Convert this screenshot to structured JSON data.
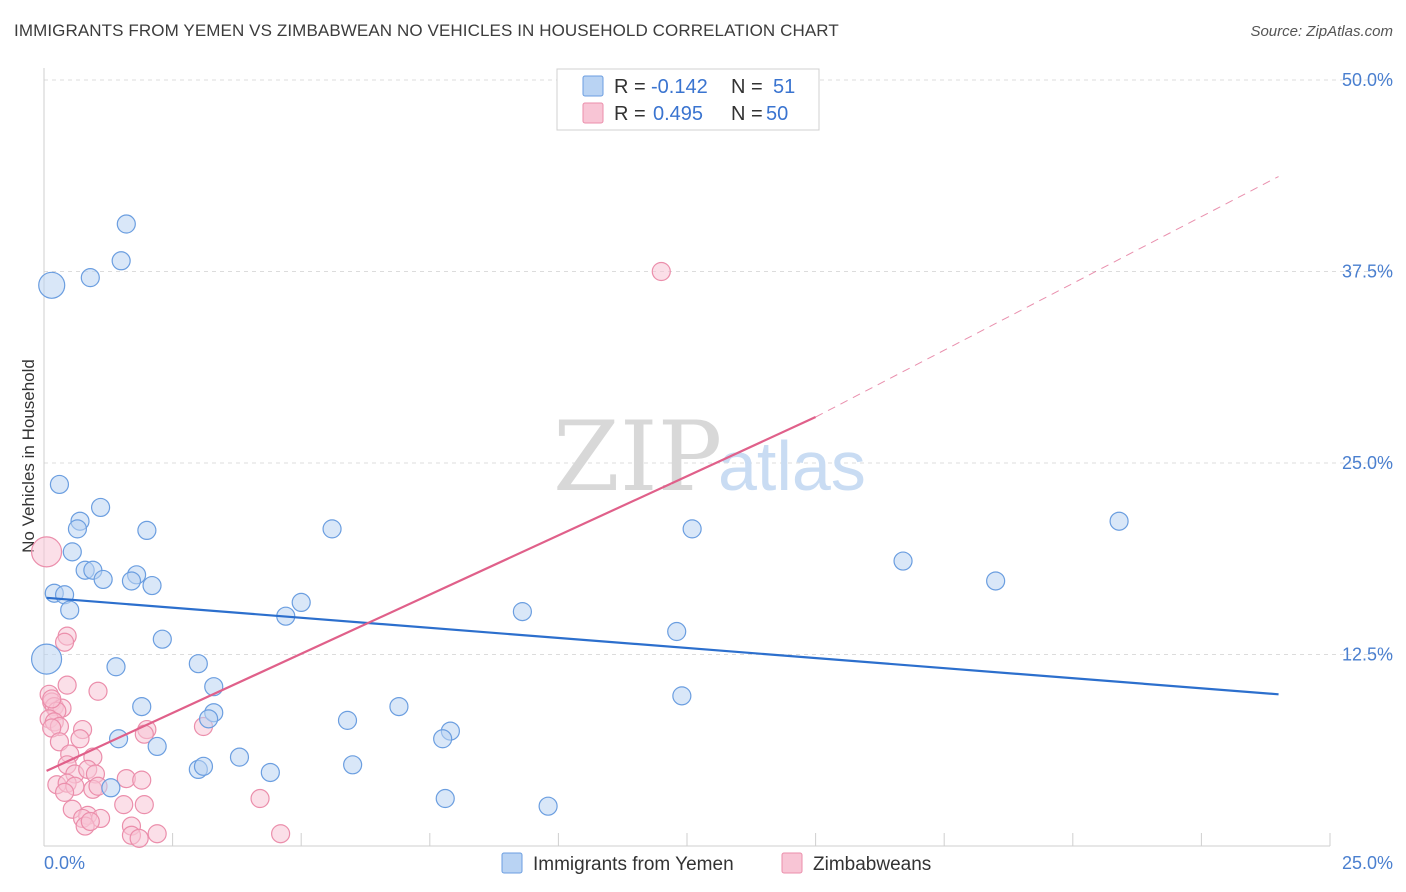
{
  "header": {
    "title": "IMMIGRANTS FROM YEMEN VS ZIMBABWEAN NO VEHICLES IN HOUSEHOLD CORRELATION CHART",
    "source": "Source: ZipAtlas.com"
  },
  "watermark": {
    "zip": "ZIP",
    "atlas": "atlas"
  },
  "legend": {
    "rows": [
      {
        "r_label": "R =",
        "r_value": "-0.142",
        "n_label": "N =",
        "n_value": "51"
      },
      {
        "r_label": "R =",
        "r_value": "0.495",
        "n_label": "N =",
        "n_value": "50"
      }
    ]
  },
  "bottom_legend": [
    "Immigrants from Yemen",
    "Zimbabweans"
  ],
  "colors": {
    "blue_fill": "#b9d3f3",
    "blue_stroke": "#6b9ee0",
    "blue_line": "#2c6fcd",
    "pink_fill": "#f8c5d5",
    "pink_stroke": "#eb8eab",
    "pink_line": "#e0608a",
    "grid": "#dcdcdc",
    "tick_text": "#4a7fcf"
  },
  "chart_data": {
    "type": "scatter",
    "title": "IMMIGRANTS FROM YEMEN VS ZIMBABWEAN NO VEHICLES IN HOUSEHOLD CORRELATION CHART",
    "xlabel": "",
    "ylabel": "No Vehicles in Household",
    "xlim": [
      0,
      25
    ],
    "ylim": [
      0,
      50
    ],
    "x_tick_labels": [
      "0.0%",
      "25.0%"
    ],
    "y_ticks": [
      12.5,
      25.0,
      37.5,
      50.0
    ],
    "y_tick_labels": [
      "12.5%",
      "25.0%",
      "37.5%",
      "50.0%"
    ],
    "grid": true,
    "legend_position": "top-center",
    "series": [
      {
        "name": "Immigrants from Yemen",
        "r": -0.142,
        "n": 51,
        "trend": {
          "x0": 0.05,
          "y0": 16.2,
          "x1": 24.0,
          "y1": 9.9
        },
        "points": [
          {
            "x": 0.15,
            "y": 36.6,
            "s": 13
          },
          {
            "x": 0.9,
            "y": 37.1,
            "s": 9
          },
          {
            "x": 1.5,
            "y": 38.2,
            "s": 9
          },
          {
            "x": 1.6,
            "y": 40.6,
            "s": 9
          },
          {
            "x": 0.3,
            "y": 23.6,
            "s": 9
          },
          {
            "x": 1.1,
            "y": 22.1,
            "s": 9
          },
          {
            "x": 0.7,
            "y": 21.2,
            "s": 9
          },
          {
            "x": 0.65,
            "y": 20.7,
            "s": 9
          },
          {
            "x": 2.0,
            "y": 20.6,
            "s": 9
          },
          {
            "x": 5.6,
            "y": 20.7,
            "s": 9
          },
          {
            "x": 12.6,
            "y": 20.7,
            "s": 9
          },
          {
            "x": 20.9,
            "y": 21.2,
            "s": 9
          },
          {
            "x": 0.55,
            "y": 19.2,
            "s": 9
          },
          {
            "x": 16.7,
            "y": 18.6,
            "s": 9
          },
          {
            "x": 0.8,
            "y": 18.0,
            "s": 9
          },
          {
            "x": 0.95,
            "y": 18.0,
            "s": 9
          },
          {
            "x": 1.15,
            "y": 17.4,
            "s": 9
          },
          {
            "x": 1.8,
            "y": 17.7,
            "s": 9
          },
          {
            "x": 1.7,
            "y": 17.3,
            "s": 9
          },
          {
            "x": 2.1,
            "y": 17.0,
            "s": 9
          },
          {
            "x": 18.5,
            "y": 17.3,
            "s": 9
          },
          {
            "x": 0.2,
            "y": 16.5,
            "s": 9
          },
          {
            "x": 0.4,
            "y": 16.4,
            "s": 9
          },
          {
            "x": 0.5,
            "y": 15.4,
            "s": 9
          },
          {
            "x": 5.0,
            "y": 15.9,
            "s": 9
          },
          {
            "x": 4.7,
            "y": 15.0,
            "s": 9
          },
          {
            "x": 9.3,
            "y": 15.3,
            "s": 9
          },
          {
            "x": 12.3,
            "y": 14.0,
            "s": 9
          },
          {
            "x": 2.3,
            "y": 13.5,
            "s": 9
          },
          {
            "x": 0.05,
            "y": 12.2,
            "s": 15
          },
          {
            "x": 1.4,
            "y": 11.7,
            "s": 9
          },
          {
            "x": 3.0,
            "y": 11.9,
            "s": 9
          },
          {
            "x": 3.3,
            "y": 10.4,
            "s": 9
          },
          {
            "x": 12.4,
            "y": 9.8,
            "s": 9
          },
          {
            "x": 1.9,
            "y": 9.1,
            "s": 9
          },
          {
            "x": 6.9,
            "y": 9.1,
            "s": 9
          },
          {
            "x": 3.3,
            "y": 8.7,
            "s": 9
          },
          {
            "x": 3.2,
            "y": 8.3,
            "s": 9
          },
          {
            "x": 5.9,
            "y": 8.2,
            "s": 9
          },
          {
            "x": 1.45,
            "y": 7.0,
            "s": 9
          },
          {
            "x": 7.9,
            "y": 7.5,
            "s": 9
          },
          {
            "x": 7.75,
            "y": 7.0,
            "s": 9
          },
          {
            "x": 2.2,
            "y": 6.5,
            "s": 9
          },
          {
            "x": 3.8,
            "y": 5.8,
            "s": 9
          },
          {
            "x": 6.0,
            "y": 5.3,
            "s": 9
          },
          {
            "x": 3.0,
            "y": 5.0,
            "s": 9
          },
          {
            "x": 3.1,
            "y": 5.2,
            "s": 9
          },
          {
            "x": 4.4,
            "y": 4.8,
            "s": 9
          },
          {
            "x": 1.3,
            "y": 3.8,
            "s": 9
          },
          {
            "x": 7.8,
            "y": 3.1,
            "s": 9
          },
          {
            "x": 9.8,
            "y": 2.6,
            "s": 9
          }
        ]
      },
      {
        "name": "Zimbabweans",
        "r": 0.495,
        "n": 50,
        "trend": {
          "x0": 0.05,
          "y0": 4.9,
          "x1": 15.0,
          "y1": 28.0,
          "dash_x1": 24.0,
          "dash_y1": 43.7
        },
        "points": [
          {
            "x": 0.05,
            "y": 19.2,
            "s": 15
          },
          {
            "x": 12.0,
            "y": 37.5,
            "s": 9
          },
          {
            "x": 0.45,
            "y": 13.7,
            "s": 9
          },
          {
            "x": 0.4,
            "y": 13.3,
            "s": 9
          },
          {
            "x": 0.45,
            "y": 10.5,
            "s": 9
          },
          {
            "x": 1.05,
            "y": 10.1,
            "s": 9
          },
          {
            "x": 0.1,
            "y": 9.9,
            "s": 9
          },
          {
            "x": 0.15,
            "y": 9.4,
            "s": 9
          },
          {
            "x": 0.2,
            "y": 9.1,
            "s": 9
          },
          {
            "x": 0.35,
            "y": 9.0,
            "s": 9
          },
          {
            "x": 0.25,
            "y": 8.8,
            "s": 9
          },
          {
            "x": 0.1,
            "y": 8.3,
            "s": 9
          },
          {
            "x": 0.2,
            "y": 8.1,
            "s": 9
          },
          {
            "x": 0.3,
            "y": 7.8,
            "s": 9
          },
          {
            "x": 0.15,
            "y": 7.7,
            "s": 9
          },
          {
            "x": 0.75,
            "y": 7.6,
            "s": 9
          },
          {
            "x": 2.0,
            "y": 7.6,
            "s": 9
          },
          {
            "x": 1.95,
            "y": 7.3,
            "s": 9
          },
          {
            "x": 3.1,
            "y": 7.8,
            "s": 9
          },
          {
            "x": 0.3,
            "y": 6.8,
            "s": 9
          },
          {
            "x": 0.7,
            "y": 7.0,
            "s": 9
          },
          {
            "x": 0.5,
            "y": 6.0,
            "s": 9
          },
          {
            "x": 0.95,
            "y": 5.8,
            "s": 9
          },
          {
            "x": 0.45,
            "y": 5.3,
            "s": 9
          },
          {
            "x": 0.6,
            "y": 4.7,
            "s": 9
          },
          {
            "x": 0.85,
            "y": 5.0,
            "s": 9
          },
          {
            "x": 1.0,
            "y": 4.7,
            "s": 9
          },
          {
            "x": 1.6,
            "y": 4.4,
            "s": 9
          },
          {
            "x": 1.9,
            "y": 4.3,
            "s": 9
          },
          {
            "x": 0.25,
            "y": 4.0,
            "s": 9
          },
          {
            "x": 0.45,
            "y": 4.1,
            "s": 9
          },
          {
            "x": 0.6,
            "y": 3.9,
            "s": 9
          },
          {
            "x": 0.95,
            "y": 3.7,
            "s": 9
          },
          {
            "x": 1.05,
            "y": 3.9,
            "s": 9
          },
          {
            "x": 0.4,
            "y": 3.5,
            "s": 9
          },
          {
            "x": 4.2,
            "y": 3.1,
            "s": 9
          },
          {
            "x": 1.55,
            "y": 2.7,
            "s": 9
          },
          {
            "x": 1.95,
            "y": 2.7,
            "s": 9
          },
          {
            "x": 0.55,
            "y": 2.4,
            "s": 9
          },
          {
            "x": 0.85,
            "y": 2.0,
            "s": 9
          },
          {
            "x": 1.1,
            "y": 1.8,
            "s": 9
          },
          {
            "x": 0.75,
            "y": 1.8,
            "s": 9
          },
          {
            "x": 0.8,
            "y": 1.3,
            "s": 9
          },
          {
            "x": 1.7,
            "y": 1.3,
            "s": 9
          },
          {
            "x": 1.7,
            "y": 0.7,
            "s": 9
          },
          {
            "x": 2.2,
            "y": 0.8,
            "s": 9
          },
          {
            "x": 4.6,
            "y": 0.8,
            "s": 9
          },
          {
            "x": 0.15,
            "y": 9.6,
            "s": 9
          },
          {
            "x": 0.9,
            "y": 1.6,
            "s": 9
          },
          {
            "x": 1.85,
            "y": 0.5,
            "s": 9
          }
        ]
      }
    ]
  }
}
